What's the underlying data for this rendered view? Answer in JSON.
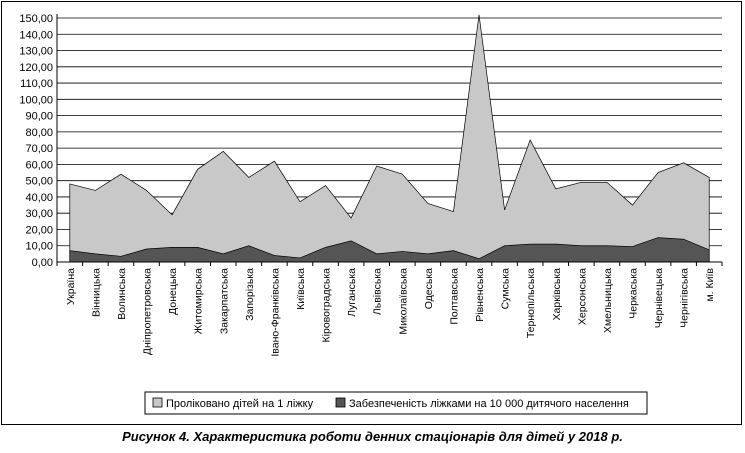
{
  "caption": "Рисунок 4. Характеристика роботи денних стаціонарів для дітей у 2018 р.",
  "chart_data": {
    "type": "area",
    "title": "",
    "xlabel": "",
    "ylabel": "",
    "ylim": [
      0,
      150
    ],
    "y_ticks": [
      "0,00",
      "10,00",
      "20,00",
      "30,00",
      "40,00",
      "50,00",
      "60,00",
      "70,00",
      "80,00",
      "90,00",
      "100,00",
      "110,00",
      "120,00",
      "130,00",
      "140,00",
      "150,00"
    ],
    "grid": true,
    "legend_position": "bottom",
    "categories": [
      "Україна",
      "Вінницька",
      "Волинська",
      "Дніпропетровська",
      "Донецька",
      "Житомирська",
      "Закарпатська",
      "Запорізька",
      "Івано-Франківська",
      "Київська",
      "Кіровоградська",
      "Луганська",
      "Львівська",
      "Миколаївська",
      "Одеська",
      "Полтавська",
      "Рівненська",
      "Сумська",
      "Тернопільська",
      "Харківська",
      "Херсонська",
      "Хмельницька",
      "Черкаська",
      "Чернівецька",
      "Чернігівська",
      "м. Київ"
    ],
    "series": [
      {
        "name": "Проліковано дітей на 1 ліжку",
        "color": "#c8c8c8",
        "values": [
          48,
          44,
          54,
          44,
          29,
          57,
          68,
          52,
          62,
          37,
          47,
          27,
          59,
          54,
          36,
          31,
          152,
          32,
          75,
          45,
          49,
          49,
          35,
          55,
          61,
          52
        ]
      },
      {
        "name": "Забезпеченість ліжками на 10 000 дитячого населення",
        "color": "#555555",
        "values": [
          7,
          5,
          3.5,
          8,
          9,
          9,
          5,
          10,
          4,
          2.5,
          9,
          13,
          5,
          6.5,
          5,
          7,
          2,
          10,
          11,
          11,
          10,
          10,
          9.5,
          15,
          14,
          7.5
        ]
      }
    ]
  }
}
